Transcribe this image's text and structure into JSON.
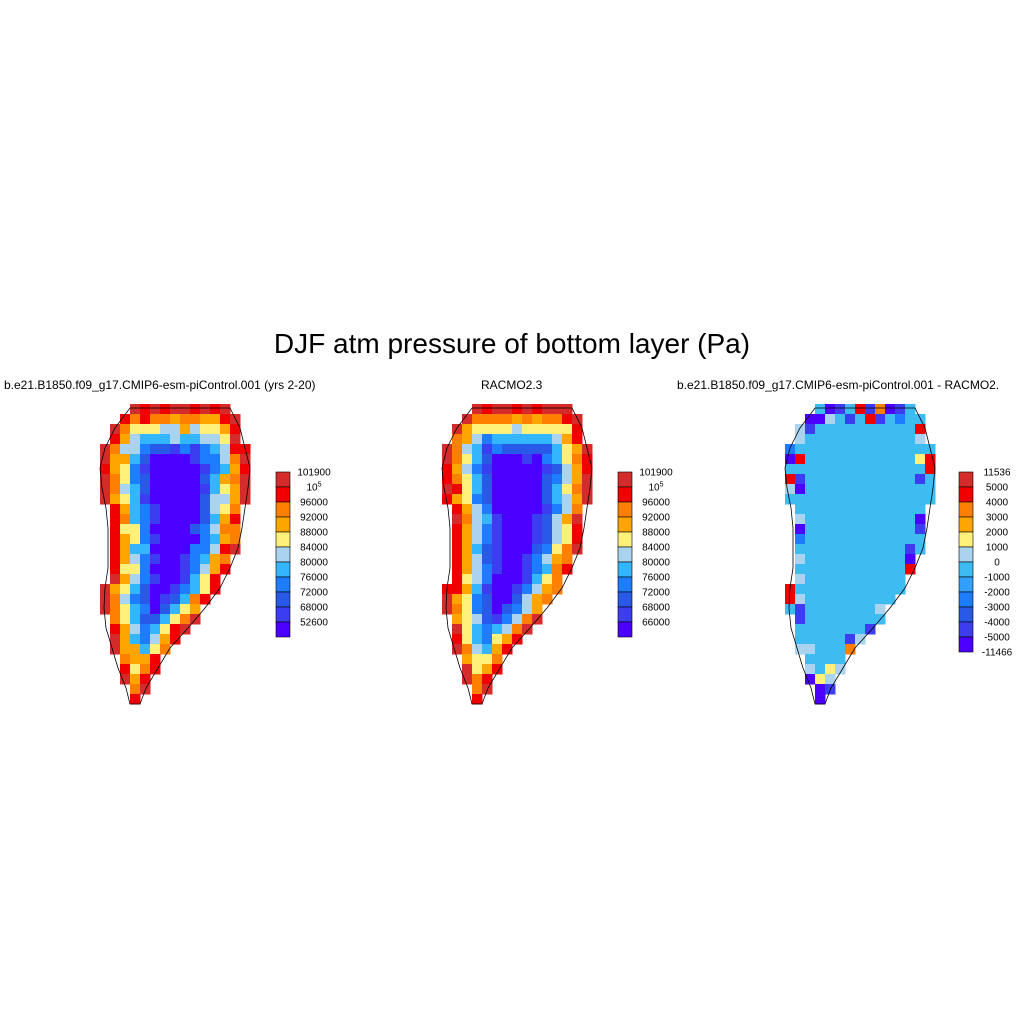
{
  "title": "DJF atm pressure of bottom layer (Pa)",
  "chart_data": [
    {
      "type": "heatmap",
      "title": "b.e21.B1850.f09_g17.CMIP6-esm-piControl.001 (yrs 2-20)",
      "colorbar_labels": [
        "101900",
        "10^5",
        "96000",
        "92000",
        "88000",
        "84000",
        "80000",
        "76000",
        "72000",
        "68000",
        "52600"
      ],
      "colorbar_colors": [
        "#d52b2b",
        "#f00000",
        "#ff7f00",
        "#ffa500",
        "#fff07a",
        "#a9d3ef",
        "#33b5ff",
        "#1e7cff",
        "#2859e9",
        "#3c3cf0",
        "#4b00ff"
      ],
      "color_min": 52600,
      "color_max": 101900
    },
    {
      "type": "heatmap",
      "title": "RACMO2.3",
      "colorbar_labels": [
        "101900",
        "10^5",
        "96000",
        "92000",
        "88000",
        "84000",
        "80000",
        "76000",
        "72000",
        "68000",
        "66000"
      ],
      "colorbar_colors": [
        "#d52b2b",
        "#f00000",
        "#ff7f00",
        "#ffa500",
        "#fff07a",
        "#a9d3ef",
        "#33b5ff",
        "#1e7cff",
        "#2859e9",
        "#3c3cf0",
        "#4b00ff"
      ],
      "color_min": 66000,
      "color_max": 101900
    },
    {
      "type": "heatmap",
      "title": "b.e21.B1850.f09_g17.CMIP6-esm-piControl.001 - RACMO2.",
      "colorbar_labels": [
        "11536",
        "5000",
        "4000",
        "3000",
        "2000",
        "1000",
        "0",
        "-1000",
        "-2000",
        "-3000",
        "-4000",
        "-5000",
        "-11466"
      ],
      "colorbar_colors": [
        "#d52b2b",
        "#f00000",
        "#ff7f00",
        "#ffa500",
        "#fff07a",
        "#a9d3ef",
        "#3cbcf0",
        "#33a0ff",
        "#1e7cff",
        "#2859e9",
        "#3c3cf0",
        "#4b00ff"
      ],
      "color_min": -11466,
      "color_max": 11536
    }
  ]
}
